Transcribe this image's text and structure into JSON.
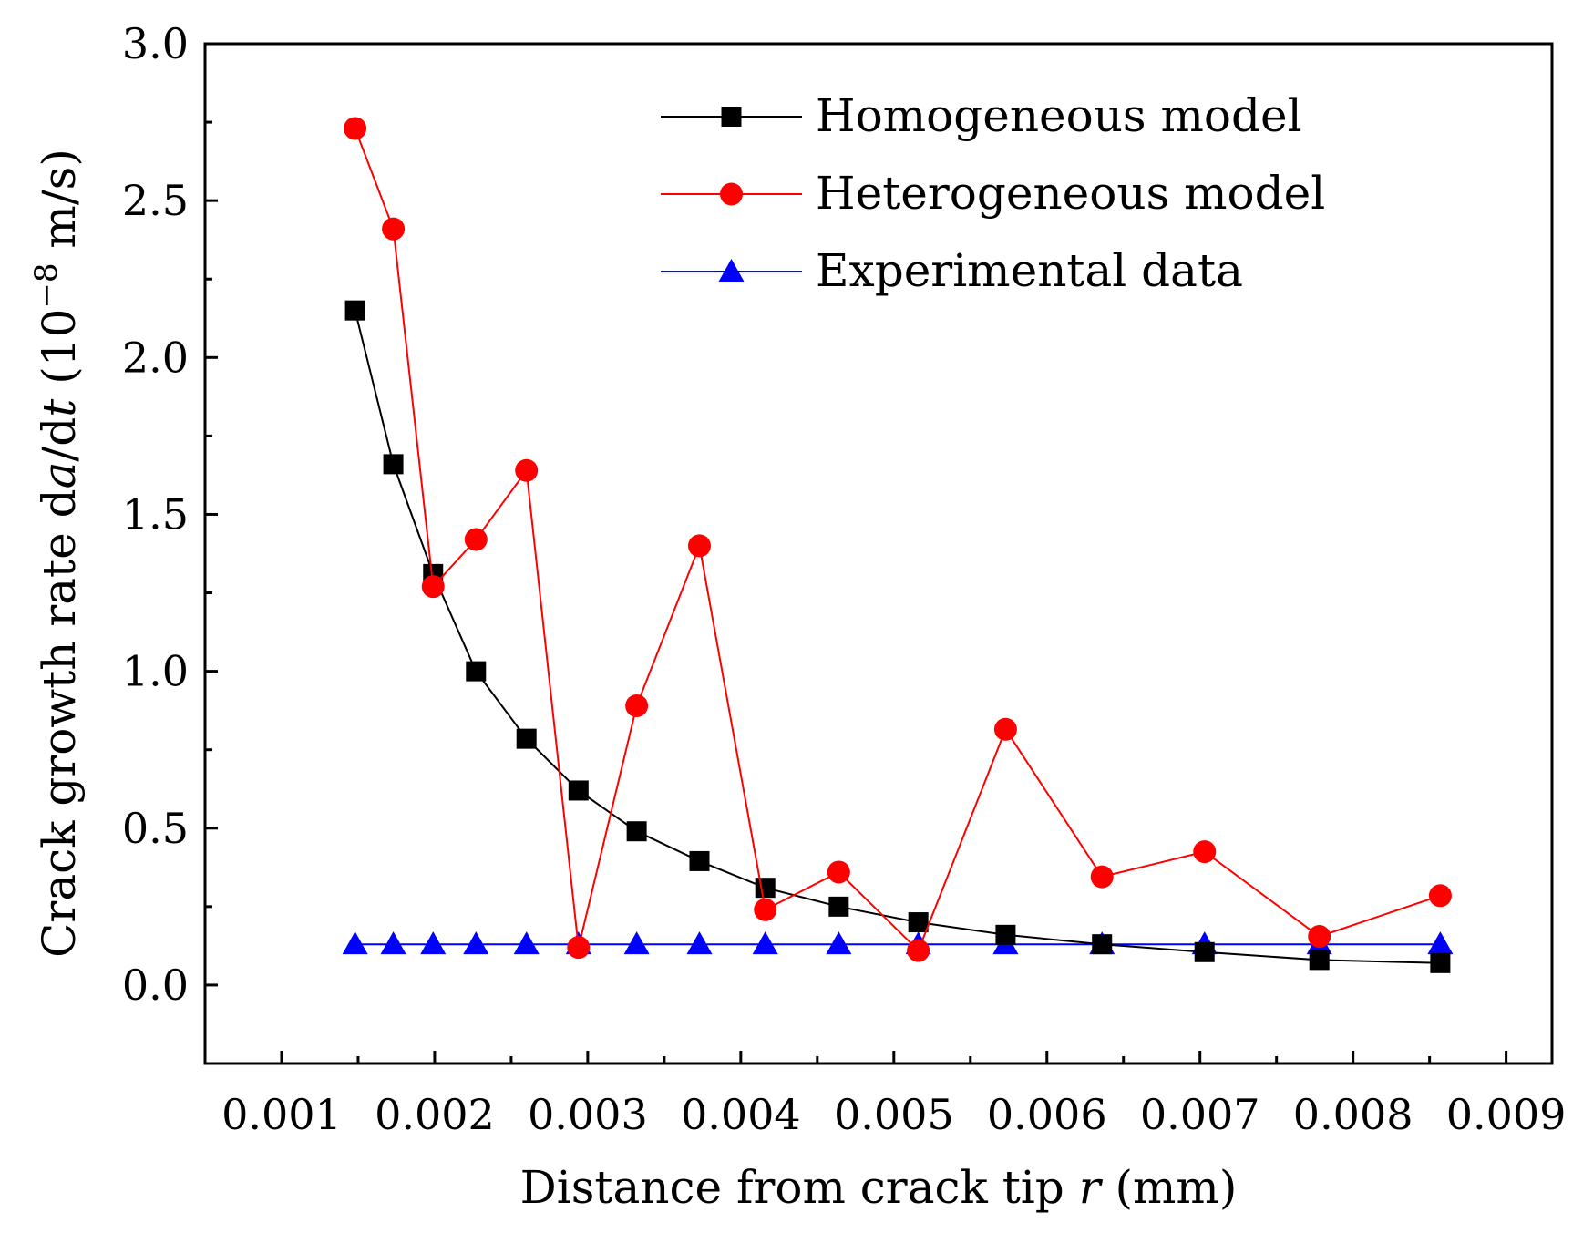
{
  "chart_data": {
    "type": "line",
    "title": "",
    "xlabel": {
      "prefix": "Distance from crack tip ",
      "italic": "r",
      "suffix": " (mm)"
    },
    "ylabel": {
      "part1": "Crack growth rate d",
      "italic1": "a",
      "part2": "/d",
      "italic2": "t",
      "part3": " (10",
      "superscript": "−8",
      "part4": " m/s)"
    },
    "xlim": [
      0.0005,
      0.0093
    ],
    "ylim": [
      -0.25,
      3.0
    ],
    "xticks": [
      0.001,
      0.002,
      0.003,
      0.004,
      0.005,
      0.006,
      0.007,
      0.008,
      0.009
    ],
    "xtick_labels": [
      "0.001",
      "0.002",
      "0.003",
      "0.004",
      "0.005",
      "0.006",
      "0.007",
      "0.008",
      "0.009"
    ],
    "yticks": [
      0.0,
      0.5,
      1.0,
      1.5,
      2.0,
      2.5,
      3.0
    ],
    "ytick_labels": [
      "0.0",
      "0.5",
      "1.0",
      "1.5",
      "2.0",
      "2.5",
      "3.0"
    ],
    "grid": false,
    "legend_position": "top-right",
    "x": [
      0.00148,
      0.00173,
      0.00199,
      0.00227,
      0.0026,
      0.00294,
      0.00332,
      0.00373,
      0.00416,
      0.00464,
      0.00516,
      0.00573,
      0.00636,
      0.00703,
      0.00778,
      0.00857
    ],
    "series": [
      {
        "name": "Homogeneous model",
        "color": "#000000",
        "marker": "square",
        "values": [
          2.15,
          1.66,
          1.31,
          1.0,
          0.785,
          0.62,
          0.49,
          0.395,
          0.31,
          0.25,
          0.2,
          0.16,
          0.13,
          0.105,
          0.08,
          0.07
        ]
      },
      {
        "name": "Heterogeneous model",
        "color": "#ff0000",
        "marker": "circle",
        "values": [
          2.73,
          2.41,
          1.27,
          1.42,
          1.64,
          0.12,
          0.89,
          1.4,
          0.24,
          0.36,
          0.11,
          0.815,
          0.345,
          0.425,
          0.155,
          0.285
        ]
      },
      {
        "name": "Experimental data",
        "color": "#0000ff",
        "marker": "triangle",
        "values": [
          0.13,
          0.13,
          0.13,
          0.13,
          0.13,
          0.13,
          0.13,
          0.13,
          0.13,
          0.13,
          0.13,
          0.13,
          0.13,
          0.13,
          0.13,
          0.13
        ]
      }
    ]
  }
}
